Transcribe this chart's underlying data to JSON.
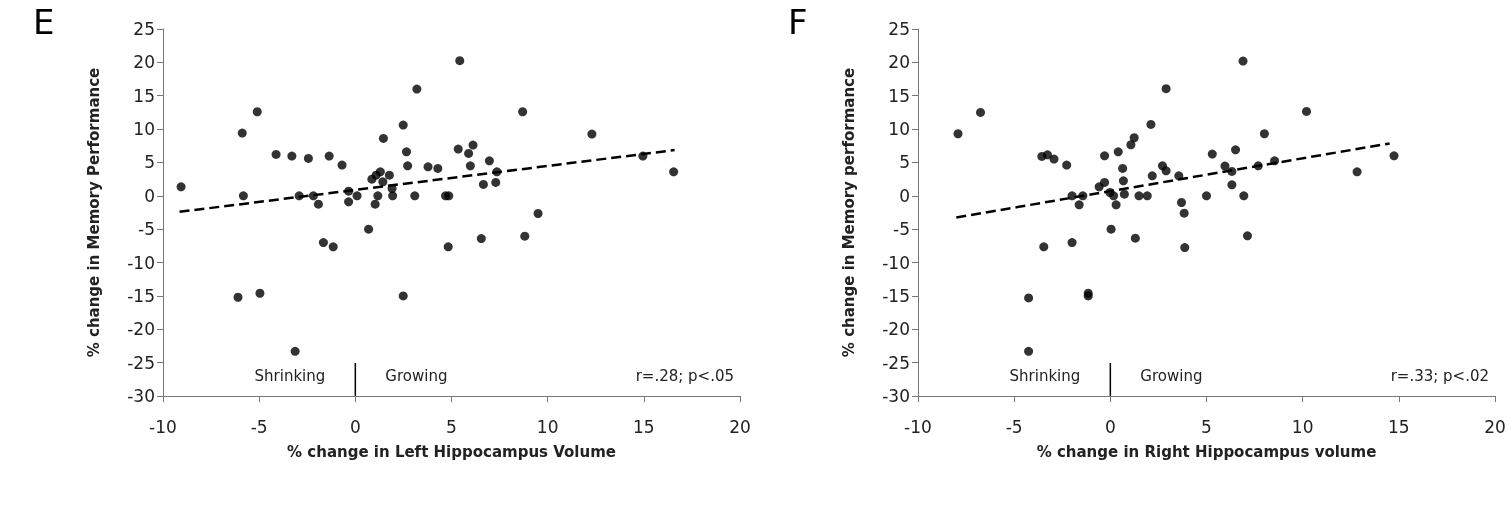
{
  "chart_data": [
    {
      "type": "scatter",
      "title": "E",
      "xlabel": "% change in Left Hippocampus Volume",
      "ylabel": "% change in Memory Performance",
      "xlim": [
        -10,
        20
      ],
      "xticks": [
        -10,
        -5,
        0,
        5,
        10,
        15,
        20
      ],
      "ylim": [
        -30,
        25
      ],
      "yticks": [
        -30,
        -25,
        -20,
        -15,
        -10,
        -5,
        0,
        5,
        10,
        15,
        20,
        25
      ],
      "grid": false,
      "marker": "circle",
      "ref_lines": [
        {
          "axis": "x",
          "value": 0,
          "color": "#000000"
        }
      ],
      "annotations": [
        "Shrinking",
        "Growing",
        "r=.28; p<.05"
      ],
      "series": [
        {
          "color": "#000000",
          "x": [
            -9.06,
            -5.88,
            -5.1,
            -5.82,
            -6.1,
            -4.96,
            -4.12,
            -3.3,
            -2.44,
            -1.36,
            -0.69,
            -2.92,
            -2.18,
            -1.92,
            -1.66,
            -1.15,
            -3.13,
            -0.35,
            -0.35,
            0.09,
            0.69,
            0.86,
            1.08,
            1.3,
            1.77,
            1.43,
            1.91,
            1.17,
            1.94,
            1.03,
            1.46,
            2.49,
            2.66,
            2.72,
            2.49,
            3.2,
            3.09,
            3.78,
            4.29,
            5.43,
            4.69,
            4.86,
            4.83,
            5.35,
            6.12,
            5.89,
            5.98,
            6.66,
            6.97,
            7.3,
            7.36,
            6.55,
            8.7,
            8.81,
            9.5,
            12.3,
            14.95,
            16.55
          ],
          "values": [
            1.35,
            9.4,
            12.6,
            0,
            -15.2,
            -14.6,
            6.2,
            5.95,
            5.6,
            5.95,
            4.6,
            0,
            0,
            -1.25,
            -7,
            -7.65,
            -23.3,
            -0.9,
            0.7,
            0,
            -5,
            2.5,
            3.1,
            3.6,
            3.1,
            2.1,
            1.1,
            0,
            0,
            -1.25,
            8.6,
            10.6,
            6.6,
            4.5,
            -15,
            16,
            0,
            4.35,
            4.1,
            20.25,
            0,
            0,
            -7.65,
            7,
            7.6,
            6.35,
            4.5,
            1.7,
            5.25,
            2,
            3.6,
            -6.4,
            12.6,
            -6.05,
            -2.65,
            9.25,
            5.95,
            3.6
          ]
        },
        {
          "type": "line",
          "color": "#000000",
          "line_style": "dashed",
          "marker": "none",
          "x": [
            -9.14,
            16.6
          ],
          "values": [
            -2.4,
            6.85
          ]
        }
      ]
    },
    {
      "type": "scatter",
      "title": "F",
      "xlabel": "% change in Right Hippocampus volume",
      "ylabel": "% change in Memory performance",
      "xlim": [
        -10,
        20
      ],
      "xticks": [
        -10,
        -5,
        0,
        5,
        10,
        15,
        20
      ],
      "ylim": [
        -30,
        25
      ],
      "yticks": [
        -30,
        -25,
        -20,
        -15,
        -10,
        -5,
        0,
        5,
        10,
        15,
        20,
        25
      ],
      "grid": false,
      "marker": "circle",
      "ref_lines": [
        {
          "axis": "x",
          "value": 0,
          "color": "#000000"
        }
      ],
      "annotations": [
        "Shrinking",
        "Growing",
        "r=.33; p<.02"
      ],
      "series": [
        {
          "color": "#000000",
          "x": [
            -7.92,
            -6.75,
            -3.56,
            -3.27,
            -2.93,
            -2.27,
            -4.25,
            -4.25,
            -3.46,
            -1.99,
            -1.15,
            -1.15,
            -1.99,
            -1.43,
            -1.62,
            -0.58,
            -0.3,
            -0.3,
            0.41,
            0.04,
            -0.02,
            0.17,
            0.3,
            0.64,
            0.68,
            0.73,
            1.07,
            1.24,
            1.3,
            1.49,
            1.92,
            2.11,
            2.18,
            2.9,
            2.71,
            2.9,
            3.56,
            3.7,
            3.84,
            3.87,
            5.0,
            5.3,
            5.96,
            6.32,
            6.32,
            6.51,
            6.9,
            6.94,
            7.13,
            7.69,
            8.01,
            8.54,
            10.2,
            12.83,
            14.75
          ],
          "values": [
            9.3,
            12.5,
            5.9,
            6.15,
            5.5,
            4.6,
            -15.3,
            -23.3,
            -7.65,
            -7,
            -14.6,
            -15,
            0,
            0,
            -1.35,
            1.35,
            2,
            6,
            6.6,
            -5,
            0.5,
            0,
            -1.35,
            4.1,
            2.25,
            0.25,
            7.65,
            8.7,
            -6.35,
            0,
            0,
            10.7,
            3,
            16.05,
            4.5,
            3.75,
            3,
            -1,
            -2.6,
            -7.75,
            0,
            6.25,
            4.45,
            3.65,
            1.65,
            6.9,
            20.2,
            0,
            -6,
            4.5,
            9.3,
            5.25,
            12.65,
            3.6,
            6
          ]
        },
        {
          "type": "line",
          "color": "#000000",
          "line_style": "dashed",
          "marker": "none",
          "x": [
            -8.01,
            14.52
          ],
          "values": [
            -3.25,
            7.85
          ]
        }
      ]
    }
  ]
}
